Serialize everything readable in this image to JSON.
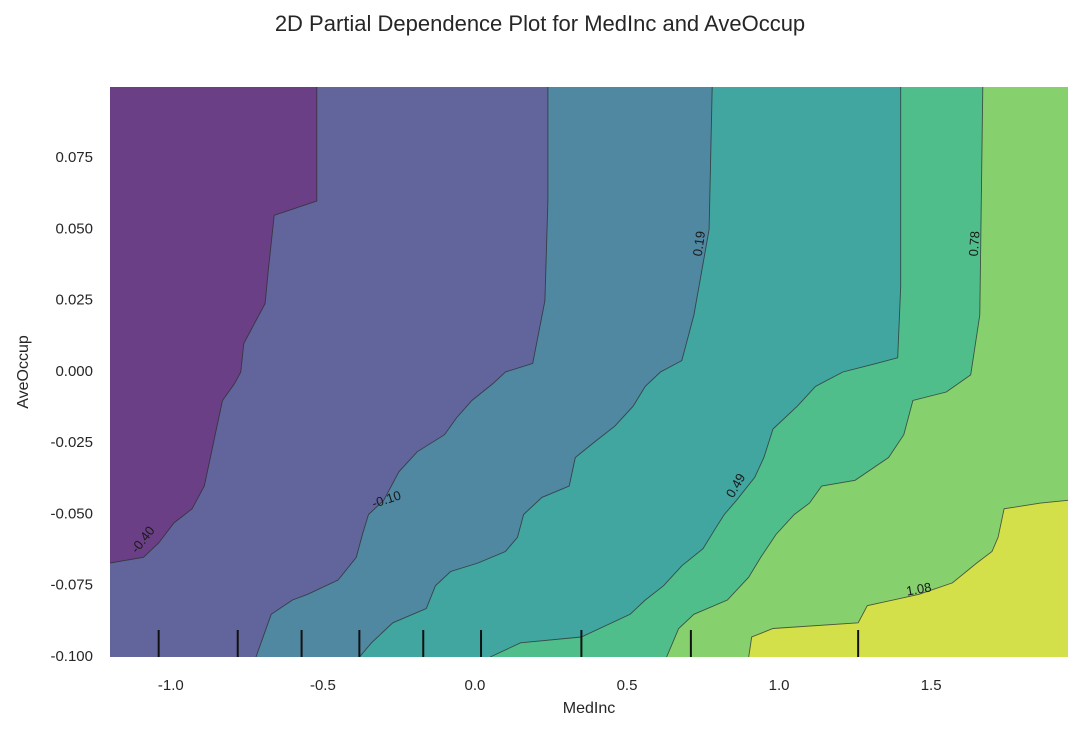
{
  "chart_data": {
    "type": "heatmap",
    "subtype": "filled-contour",
    "title": "2D Partial Dependence Plot for MedInc and AveOccup",
    "xlabel": "MedInc",
    "ylabel": "AveOccup",
    "xlim": [
      -1.2,
      1.95
    ],
    "ylim": [
      -0.1,
      0.1
    ],
    "x_ticks": [
      -1.0,
      -0.5,
      0.0,
      0.5,
      1.0,
      1.5
    ],
    "x_tick_labels": [
      "-1.0",
      "-0.5",
      "0.0",
      "0.5",
      "1.0",
      "1.5"
    ],
    "y_ticks": [
      0.075,
      0.05,
      0.025,
      0.0,
      -0.025,
      -0.05,
      -0.075,
      -0.1
    ],
    "y_tick_labels": [
      "0.075",
      "0.050",
      "0.025",
      "0.000",
      "-0.025",
      "-0.050",
      "-0.075",
      "-0.100"
    ],
    "contour_levels": [
      {
        "value": -0.4,
        "label": "-0.40"
      },
      {
        "value": -0.1,
        "label": "-0.10"
      },
      {
        "value": 0.19,
        "label": "0.19"
      },
      {
        "value": 0.49,
        "label": "0.49"
      },
      {
        "value": 0.78,
        "label": "0.78"
      },
      {
        "value": 1.08,
        "label": "1.08"
      }
    ],
    "contour_lines": [
      {
        "value": -0.4,
        "points": [
          [
            -1.2,
            -0.067
          ],
          [
            -1.09,
            -0.065
          ],
          [
            -1.04,
            -0.06
          ],
          [
            -0.99,
            -0.053
          ],
          [
            -0.93,
            -0.048
          ],
          [
            -0.89,
            -0.04
          ],
          [
            -0.87,
            -0.03
          ],
          [
            -0.85,
            -0.02
          ],
          [
            -0.83,
            -0.01
          ],
          [
            -0.79,
            -0.004
          ],
          [
            -0.77,
            0.0
          ],
          [
            -0.76,
            0.01
          ],
          [
            -0.73,
            0.016
          ],
          [
            -0.69,
            0.024
          ],
          [
            -0.68,
            0.035
          ],
          [
            -0.66,
            0.055
          ],
          [
            -0.52,
            0.06
          ],
          [
            -0.52,
            0.1
          ]
        ]
      },
      {
        "value": -0.1,
        "points": [
          [
            -0.72,
            -0.1
          ],
          [
            -0.67,
            -0.085
          ],
          [
            -0.6,
            -0.08
          ],
          [
            -0.55,
            -0.078
          ],
          [
            -0.45,
            -0.073
          ],
          [
            -0.39,
            -0.065
          ],
          [
            -0.37,
            -0.057
          ],
          [
            -0.35,
            -0.05
          ],
          [
            -0.3,
            -0.045
          ],
          [
            -0.25,
            -0.035
          ],
          [
            -0.19,
            -0.028
          ],
          [
            -0.1,
            -0.022
          ],
          [
            -0.06,
            -0.016
          ],
          [
            -0.01,
            -0.01
          ],
          [
            0.06,
            -0.004
          ],
          [
            0.1,
            0.0
          ],
          [
            0.19,
            0.003
          ],
          [
            0.23,
            0.025
          ],
          [
            0.24,
            0.06
          ],
          [
            0.24,
            0.1
          ]
        ]
      },
      {
        "value": 0.19,
        "points": [
          [
            -0.38,
            -0.1
          ],
          [
            -0.34,
            -0.095
          ],
          [
            -0.27,
            -0.088
          ],
          [
            -0.16,
            -0.083
          ],
          [
            -0.13,
            -0.075
          ],
          [
            -0.08,
            -0.07
          ],
          [
            0.01,
            -0.067
          ],
          [
            0.1,
            -0.063
          ],
          [
            0.14,
            -0.058
          ],
          [
            0.16,
            -0.05
          ],
          [
            0.22,
            -0.044
          ],
          [
            0.31,
            -0.04
          ],
          [
            0.33,
            -0.03
          ],
          [
            0.4,
            -0.024
          ],
          [
            0.46,
            -0.019
          ],
          [
            0.52,
            -0.012
          ],
          [
            0.56,
            -0.005
          ],
          [
            0.61,
            -0.0
          ],
          [
            0.68,
            0.004
          ],
          [
            0.72,
            0.02
          ],
          [
            0.77,
            0.05
          ],
          [
            0.78,
            0.1
          ]
        ]
      },
      {
        "value": 0.49,
        "points": [
          [
            0.05,
            -0.1
          ],
          [
            0.15,
            -0.095
          ],
          [
            0.35,
            -0.093
          ],
          [
            0.51,
            -0.085
          ],
          [
            0.56,
            -0.08
          ],
          [
            0.62,
            -0.075
          ],
          [
            0.68,
            -0.068
          ],
          [
            0.75,
            -0.062
          ],
          [
            0.79,
            -0.055
          ],
          [
            0.82,
            -0.05
          ],
          [
            0.86,
            -0.045
          ],
          [
            0.92,
            -0.037
          ],
          [
            0.95,
            -0.03
          ],
          [
            0.98,
            -0.02
          ],
          [
            1.06,
            -0.012
          ],
          [
            1.12,
            -0.005
          ],
          [
            1.21,
            0.0
          ],
          [
            1.32,
            0.003
          ],
          [
            1.39,
            0.005
          ],
          [
            1.4,
            0.03
          ],
          [
            1.4,
            0.1
          ]
        ]
      },
      {
        "value": 0.78,
        "points": [
          [
            0.63,
            -0.1
          ],
          [
            0.67,
            -0.09
          ],
          [
            0.72,
            -0.085
          ],
          [
            0.83,
            -0.08
          ],
          [
            0.9,
            -0.072
          ],
          [
            0.94,
            -0.065
          ],
          [
            0.99,
            -0.057
          ],
          [
            1.05,
            -0.05
          ],
          [
            1.1,
            -0.046
          ],
          [
            1.14,
            -0.04
          ],
          [
            1.25,
            -0.038
          ],
          [
            1.36,
            -0.03
          ],
          [
            1.41,
            -0.022
          ],
          [
            1.44,
            -0.01
          ],
          [
            1.55,
            -0.007
          ],
          [
            1.63,
            -0.001
          ],
          [
            1.66,
            0.02
          ],
          [
            1.67,
            0.1
          ]
        ]
      },
      {
        "value": 1.08,
        "points": [
          [
            0.9,
            -0.1
          ],
          [
            0.91,
            -0.093
          ],
          [
            0.98,
            -0.09
          ],
          [
            1.26,
            -0.088
          ],
          [
            1.29,
            -0.082
          ],
          [
            1.46,
            -0.078
          ],
          [
            1.57,
            -0.074
          ],
          [
            1.65,
            -0.067
          ],
          [
            1.7,
            -0.063
          ],
          [
            1.72,
            -0.058
          ],
          [
            1.74,
            -0.048
          ],
          [
            1.86,
            -0.046
          ],
          [
            1.95,
            -0.045
          ]
        ]
      }
    ],
    "color_bands": [
      {
        "range": "below -0.40",
        "color": "#6b3f85"
      },
      {
        "range": "-0.40 to -0.10",
        "color": "#61659b"
      },
      {
        "range": "-0.10 to 0.19",
        "color": "#5087a1"
      },
      {
        "range": "0.19 to 0.49",
        "color": "#41a5a0"
      },
      {
        "range": "0.49 to 0.78",
        "color": "#4fbe8b"
      },
      {
        "range": "0.78 to 1.08",
        "color": "#86d16e"
      },
      {
        "range": "above 1.08",
        "color": "#d3e04a"
      }
    ],
    "rug_ticks_x": [
      -1.04,
      -0.78,
      -0.57,
      -0.38,
      -0.17,
      0.02,
      0.35,
      0.71,
      1.26
    ],
    "grid": false,
    "legend": "none"
  }
}
